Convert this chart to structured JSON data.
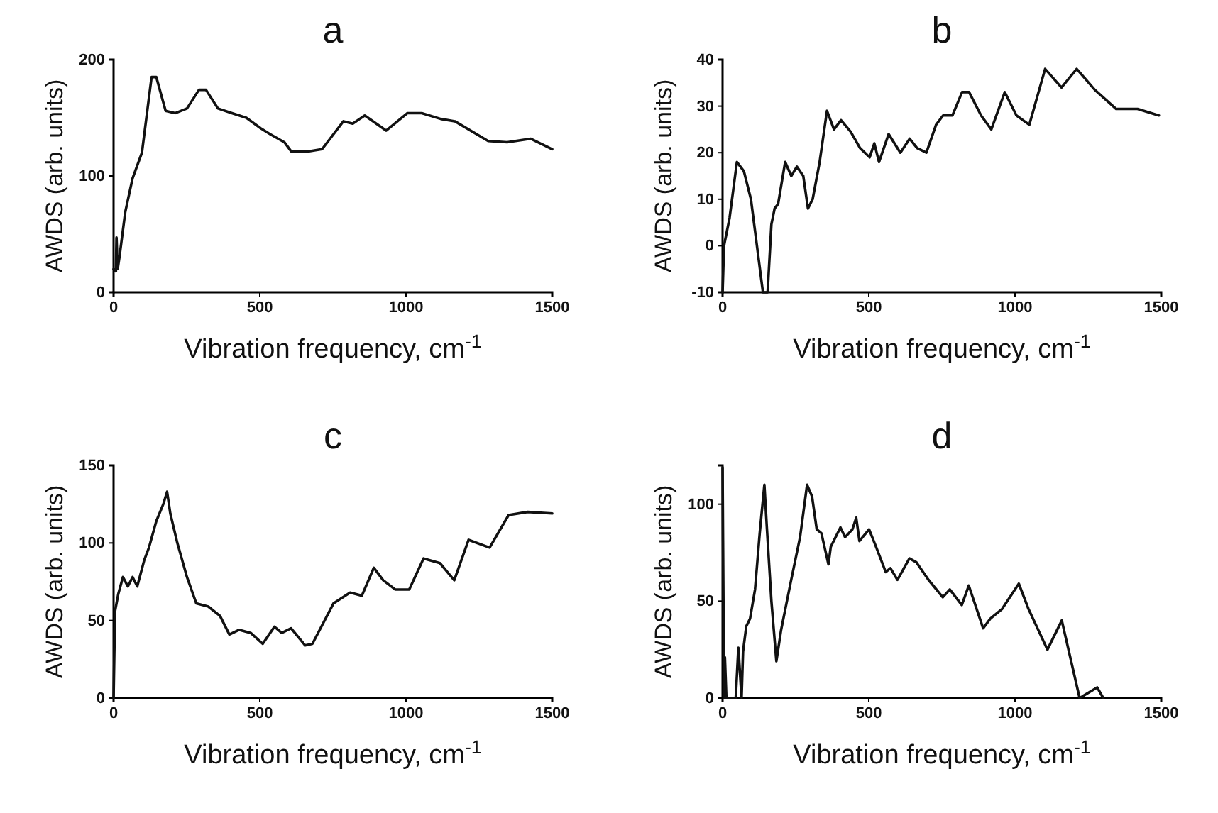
{
  "chart_data": [
    {
      "type": "line",
      "title": "a",
      "xlabel": "Vibration frequency, cm$^{-1}$",
      "ylabel": "AWDS (arb. units)",
      "xlim": [
        0,
        1500
      ],
      "xticks": [
        0,
        500,
        1000,
        1500
      ],
      "ylim": [
        0,
        200
      ],
      "yticks": [
        0,
        100,
        200
      ],
      "grid": false,
      "marker": "none",
      "line_style": "solid",
      "series": [
        {
          "color": "#111111",
          "x": [
            0,
            8,
            10,
            14,
            20,
            40,
            65,
            97,
            130,
            146,
            178,
            211,
            251,
            292,
            316,
            357,
            405,
            454,
            503,
            535,
            584,
            608,
            665,
            713,
            786,
            818,
            859,
            932,
            1005,
            1054,
            1119,
            1167,
            1281,
            1346,
            1427,
            1500
          ],
          "values": [
            20,
            18,
            47,
            20,
            30,
            69,
            98,
            120,
            185,
            185,
            156,
            154,
            158,
            174,
            174,
            158,
            154,
            150,
            141,
            136,
            129,
            121,
            121,
            123,
            147,
            145,
            152,
            139,
            154,
            154,
            149,
            147,
            130,
            129,
            132,
            123
          ]
        }
      ]
    },
    {
      "type": "line",
      "title": "b",
      "xlabel": "Vibration frequency, cm$^{-1}$",
      "ylabel": "AWDS (arb. units)",
      "xlim": [
        0,
        1500
      ],
      "xticks": [
        0,
        500,
        1000,
        1500
      ],
      "ylim": [
        -10,
        40
      ],
      "yticks": [
        -10,
        0,
        10,
        20,
        30,
        40
      ],
      "grid": false,
      "marker": "none",
      "line_style": "solid",
      "series": [
        {
          "color": "#111111",
          "x": [
            0,
            5,
            24,
            49,
            73,
            97,
            138,
            154,
            167,
            178,
            190,
            214,
            235,
            254,
            276,
            292,
            308,
            332,
            357,
            381,
            405,
            438,
            470,
            503,
            519,
            535,
            568,
            608,
            640,
            665,
            697,
            730,
            754,
            786,
            819,
            843,
            884,
            919,
            965,
            1005,
            1049,
            1103,
            1159,
            1211,
            1273,
            1346,
            1419,
            1492
          ],
          "values": [
            -10,
            0,
            6,
            18,
            16,
            10,
            -10,
            -10,
            4.6,
            8,
            9,
            18,
            15,
            17,
            15,
            8,
            10,
            18,
            29,
            25,
            27,
            24.5,
            21,
            19,
            22,
            18,
            24,
            20,
            23,
            21,
            20,
            26,
            28,
            28,
            33,
            33,
            28,
            25,
            33,
            28,
            26,
            38,
            34,
            38,
            33.5,
            29.4,
            29.4,
            28
          ]
        }
      ]
    },
    {
      "type": "line",
      "title": "c",
      "xlabel": "Vibration frequency, cm$^{-1}$",
      "ylabel": "AWDS (arb. units)",
      "xlim": [
        0,
        1500
      ],
      "xticks": [
        0,
        500,
        1000,
        1500
      ],
      "ylim": [
        0,
        150
      ],
      "yticks": [
        0,
        50,
        100,
        150
      ],
      "grid": false,
      "marker": "none",
      "line_style": "solid",
      "series": [
        {
          "color": "#111111",
          "x": [
            0,
            5,
            16,
            32,
            49,
            65,
            81,
            105,
            121,
            146,
            170,
            183,
            194,
            218,
            251,
            283,
            324,
            364,
            396,
            429,
            469,
            510,
            550,
            575,
            607,
            655,
            680,
            752,
            809,
            849,
            890,
            922,
            963,
            1011,
            1060,
            1116,
            1165,
            1214,
            1286,
            1351,
            1416,
            1500
          ],
          "values": [
            0,
            56,
            67,
            78,
            72,
            78,
            72,
            89,
            97,
            114,
            125,
            133,
            119,
            100,
            78,
            61,
            59,
            53,
            41,
            44,
            42,
            35,
            46,
            42,
            45,
            34,
            35,
            61,
            68,
            66,
            84,
            76,
            70,
            70,
            90,
            87,
            76,
            102,
            97,
            118,
            120,
            119
          ]
        }
      ]
    },
    {
      "type": "line",
      "title": "d",
      "xlabel": "Vibration frequency, cm$^{-1}$",
      "ylabel": "AWDS (arb. units)",
      "xlim": [
        0,
        1500
      ],
      "xticks": [
        0,
        500,
        1000,
        1500
      ],
      "ylim": [
        0,
        120
      ],
      "yticks": [
        0,
        50,
        100
      ],
      "grid": false,
      "marker": "none",
      "line_style": "solid",
      "series": [
        {
          "color": "#111111",
          "x": [
            0,
            5,
            8,
            13,
            45,
            54,
            65,
            70,
            81,
            94,
            111,
            127,
            143,
            151,
            167,
            184,
            200,
            232,
            265,
            289,
            306,
            322,
            338,
            362,
            370,
            403,
            419,
            444,
            457,
            468,
            501,
            525,
            558,
            574,
            598,
            639,
            663,
            704,
            753,
            777,
            818,
            842,
            891,
            916,
            956,
            1013,
            1046,
            1111,
            1160,
            1221,
            1281,
            1302
          ],
          "values": [
            119,
            0,
            21,
            0,
            0,
            26,
            0,
            24,
            37,
            41,
            56,
            85,
            110,
            89,
            50,
            19,
            35,
            59,
            83,
            110,
            104,
            87,
            85,
            69,
            78,
            88,
            83,
            87,
            93,
            81,
            87,
            78,
            65,
            67,
            61,
            72,
            70,
            61,
            52,
            56,
            48,
            58,
            36,
            41,
            46,
            59,
            46,
            25,
            40,
            0,
            5.5,
            0
          ]
        }
      ]
    }
  ]
}
